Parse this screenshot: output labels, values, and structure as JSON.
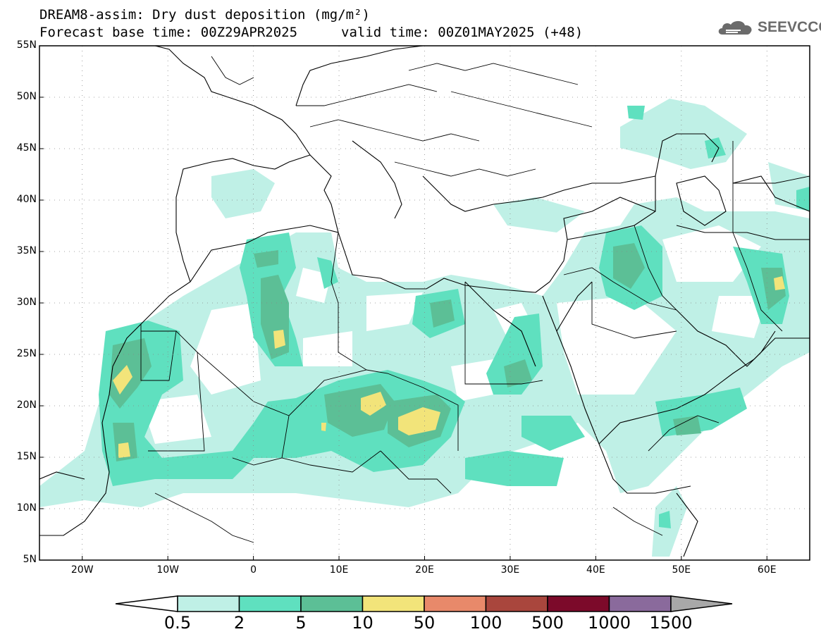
{
  "title": {
    "line1": "DREAM8-assim: Dry dust deposition (mg/m²)",
    "line2_left": "Forecast base time: 00Z29APR2025",
    "line2_right": "valid time: 00Z01MAY2025 (+48)"
  },
  "logo": {
    "text": "SEEVCCC",
    "icon": "cloud-icon"
  },
  "map": {
    "lon_range": [
      -25,
      65
    ],
    "lat_range": [
      5,
      55
    ],
    "lat_ticks": [
      "55N",
      "50N",
      "45N",
      "40N",
      "35N",
      "30N",
      "25N",
      "20N",
      "15N",
      "10N",
      "5N"
    ],
    "lon_ticks": [
      "20W",
      "10W",
      "0",
      "10E",
      "20E",
      "30E",
      "40E",
      "50E",
      "60E"
    ],
    "grid": "dotted"
  },
  "colorbar": {
    "labels": [
      "0.5",
      "2",
      "5",
      "10",
      "50",
      "100",
      "500",
      "1000",
      "1500"
    ],
    "colors": [
      "#ffffff",
      "#bff0e6",
      "#5fe0bf",
      "#5cbf96",
      "#f2e47a",
      "#e8896a",
      "#a9463d",
      "#7c0a2a",
      "#8a6a9c",
      "#a8a8a8"
    ]
  }
}
